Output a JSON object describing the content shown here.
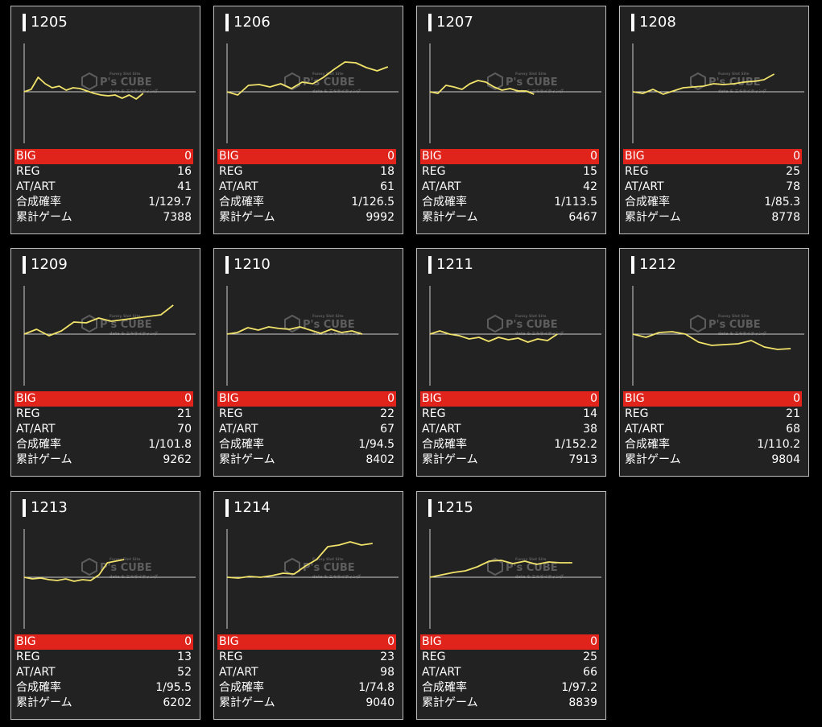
{
  "labels": {
    "big": "BIG",
    "reg": "REG",
    "at": "AT/ART",
    "rate": "合成確率",
    "games": "累計ゲーム"
  },
  "watermark": {
    "brand": "P's CUBE",
    "tagline_top": "Funny Slot Site",
    "tagline_bottom": "data & エキサイティング"
  },
  "colors": {
    "big_bar": "#e0241b",
    "line": "#f0e26a",
    "card_bg": "#222222",
    "baseline": "#cfcfcf"
  },
  "machines": [
    {
      "num": "1205",
      "big": "0",
      "reg": "16",
      "at": "41",
      "rate": "1/129.7",
      "games": "7388",
      "graph": [
        0,
        3,
        18,
        10,
        5,
        7,
        2,
        5,
        4,
        1,
        -2,
        -4,
        -5,
        -4,
        -8,
        -4,
        -9,
        -2
      ]
    },
    {
      "num": "1206",
      "big": "0",
      "reg": "18",
      "at": "61",
      "rate": "1/126.5",
      "games": "9992",
      "graph": [
        0,
        -4,
        8,
        9,
        6,
        10,
        4,
        12,
        10,
        18,
        28,
        37,
        36,
        30,
        26,
        31
      ]
    },
    {
      "num": "1207",
      "big": "0",
      "reg": "15",
      "at": "42",
      "rate": "1/113.5",
      "games": "6467",
      "graph": [
        0,
        -2,
        8,
        6,
        3,
        10,
        14,
        12,
        6,
        2,
        4,
        1,
        1,
        -3
      ]
    },
    {
      "num": "1208",
      "big": "0",
      "reg": "25",
      "at": "78",
      "rate": "1/85.3",
      "games": "8778",
      "graph": [
        0,
        -2,
        3,
        -3,
        1,
        5,
        6,
        7,
        10,
        9,
        10,
        12,
        13,
        15,
        22
      ]
    },
    {
      "num": "1209",
      "big": "0",
      "reg": "21",
      "at": "70",
      "rate": "1/101.8",
      "games": "9262",
      "graph": [
        0,
        6,
        -2,
        4,
        15,
        14,
        20,
        16,
        18,
        20,
        22,
        24,
        36
      ]
    },
    {
      "num": "1210",
      "big": "0",
      "reg": "22",
      "at": "67",
      "rate": "1/94.5",
      "games": "8402",
      "graph": [
        0,
        2,
        8,
        5,
        9,
        7,
        6,
        9,
        5,
        1,
        6,
        2,
        4,
        0
      ]
    },
    {
      "num": "1211",
      "big": "0",
      "reg": "14",
      "at": "38",
      "rate": "1/152.2",
      "games": "7913",
      "graph": [
        0,
        4,
        0,
        -2,
        -6,
        -4,
        -9,
        -4,
        -7,
        -5,
        -10,
        -6,
        -8,
        0
      ]
    },
    {
      "num": "1212",
      "big": "0",
      "reg": "21",
      "at": "68",
      "rate": "1/110.2",
      "games": "9804",
      "graph": [
        0,
        -4,
        2,
        3,
        0,
        -10,
        -14,
        -13,
        -12,
        -8,
        -16,
        -19,
        -18
      ]
    },
    {
      "num": "1213",
      "big": "0",
      "reg": "13",
      "at": "52",
      "rate": "1/95.5",
      "games": "6202",
      "graph": [
        0,
        -2,
        -1,
        -3,
        -4,
        -2,
        -5,
        -3,
        -4,
        3,
        18,
        20,
        22
      ]
    },
    {
      "num": "1214",
      "big": "0",
      "reg": "23",
      "at": "98",
      "rate": "1/74.8",
      "games": "9040",
      "graph": [
        0,
        -1,
        1,
        0,
        2,
        5,
        4,
        14,
        22,
        38,
        40,
        44,
        40,
        42
      ]
    },
    {
      "num": "1215",
      "big": "0",
      "reg": "25",
      "at": "66",
      "rate": "1/97.2",
      "games": "8839",
      "graph": [
        0,
        3,
        6,
        8,
        13,
        20,
        21,
        17,
        20,
        16,
        19,
        18,
        18
      ]
    }
  ]
}
